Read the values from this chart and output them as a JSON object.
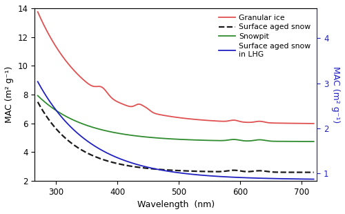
{
  "xlim": [
    265,
    725
  ],
  "ylim_left": [
    2,
    14
  ],
  "ylim_right": [
    0.833,
    4.667
  ],
  "xlabel": "Wavelength  (nm)",
  "ylabel_left": "MAC (m² g⁻¹)",
  "ylabel_right": "MAC (m² g⁻¹)",
  "yticks_left": [
    2,
    4,
    6,
    8,
    10,
    12,
    14
  ],
  "yticks_right": [
    1,
    2,
    3,
    4
  ],
  "xticks": [
    300,
    400,
    500,
    600,
    700
  ],
  "legend_entries": [
    {
      "label": "Granular ice",
      "color": "#e05050",
      "ls": "-",
      "lw": 1.3
    },
    {
      "label": "Surface aged snow",
      "color": "#1a1a1a",
      "ls": "--",
      "lw": 1.6
    },
    {
      "label": "Snowpit",
      "color": "#2e8b2e",
      "ls": "-",
      "lw": 1.3
    },
    {
      "label": "Surface aged snow\nin LHG",
      "color": "#2020c0",
      "ls": "-",
      "lw": 1.3
    }
  ],
  "background": "#ffffff",
  "right_axis_color": "#2020c0"
}
